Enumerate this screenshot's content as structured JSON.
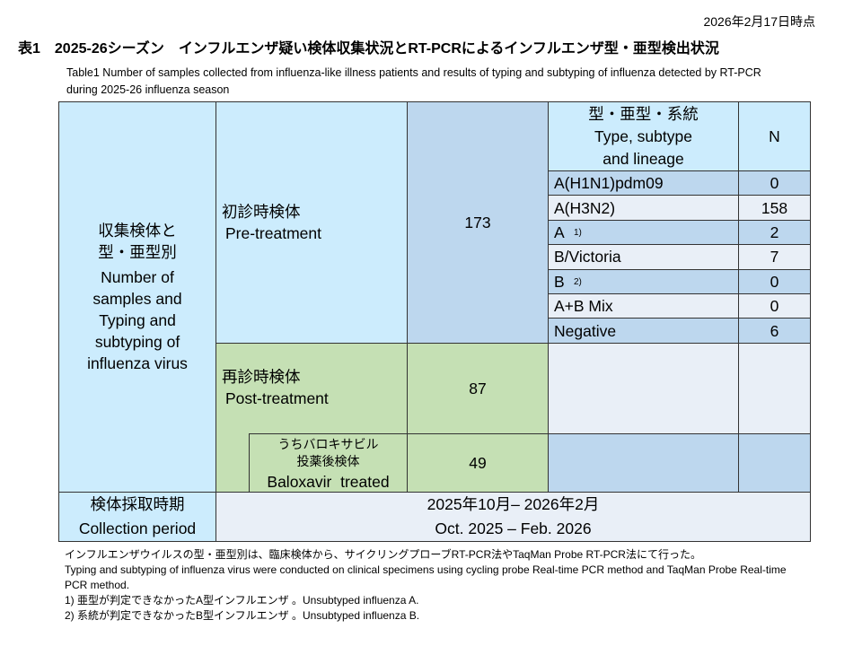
{
  "header": {
    "as_of": "2026年2月17日時点",
    "title": "表1　2025-26シーズン　インフルエンザ疑い検体収集状況とRT-PCRによるインフルエンザ型・亜型検出状況",
    "subtitle": "Table1 Number of samples collected from  influenza-like illness patients and results of typing and subtyping of influenza detected by RT-PCR during 2025-26 influenza season"
  },
  "table": {
    "row_header_jp": "収集検体と型・亜型別",
    "row_header_en": "Number of samples and Typing and subtyping of influenza virus",
    "pre_jp": "初診時検体",
    "pre_en": "Pre-treatment",
    "pre_n": "173",
    "type_header_jp": "型・亜型・系統",
    "type_header_en": "Type, subtype and lineage",
    "n_header": "N",
    "types": [
      {
        "label": "A(H1N1)pdm09",
        "sup": "",
        "n": "0"
      },
      {
        "label": "A(H3N2)",
        "sup": "",
        "n": "158"
      },
      {
        "label": "A",
        "sup": "1)",
        "n": "2"
      },
      {
        "label": "B/Victoria",
        "sup": "",
        "n": "7"
      },
      {
        "label": "B",
        "sup": "2)",
        "n": "0"
      },
      {
        "label": "A+B Mix",
        "sup": "",
        "n": "0"
      },
      {
        "label": "Negative",
        "sup": "",
        "n": "6"
      }
    ],
    "post_jp": "再診時検体",
    "post_en": "Post-treatment",
    "post_n": "87",
    "balox_jp1": "うちバロキサビル",
    "balox_jp2": "投薬後検体",
    "balox_en": "Baloxavir  treated",
    "balox_n": "49",
    "period_label_jp": "検体採取時期",
    "period_label_en": "Collection period",
    "period_jp": "2025年10月– 2026年2月",
    "period_en": "Oct. 2025 – Feb. 2026"
  },
  "footnotes": [
    "インフルエンザウイルスの型・亜型別は、臨床検体から、サイクリングプローブRT-PCR法やTaqMan Probe RT-PCR法にて行った。",
    "Typing and subtyping of influenza virus were conducted on clinical specimens  using cycling probe Real-time PCR method and TaqMan Probe Real-time PCR method.",
    "1) 亜型が判定できなかったA型インフルエンザ 。Unsubtyped  influenza A.",
    "2) 系統が判定できなかったB型インフルエンザ 。Unsubtyped  influenza B."
  ]
}
